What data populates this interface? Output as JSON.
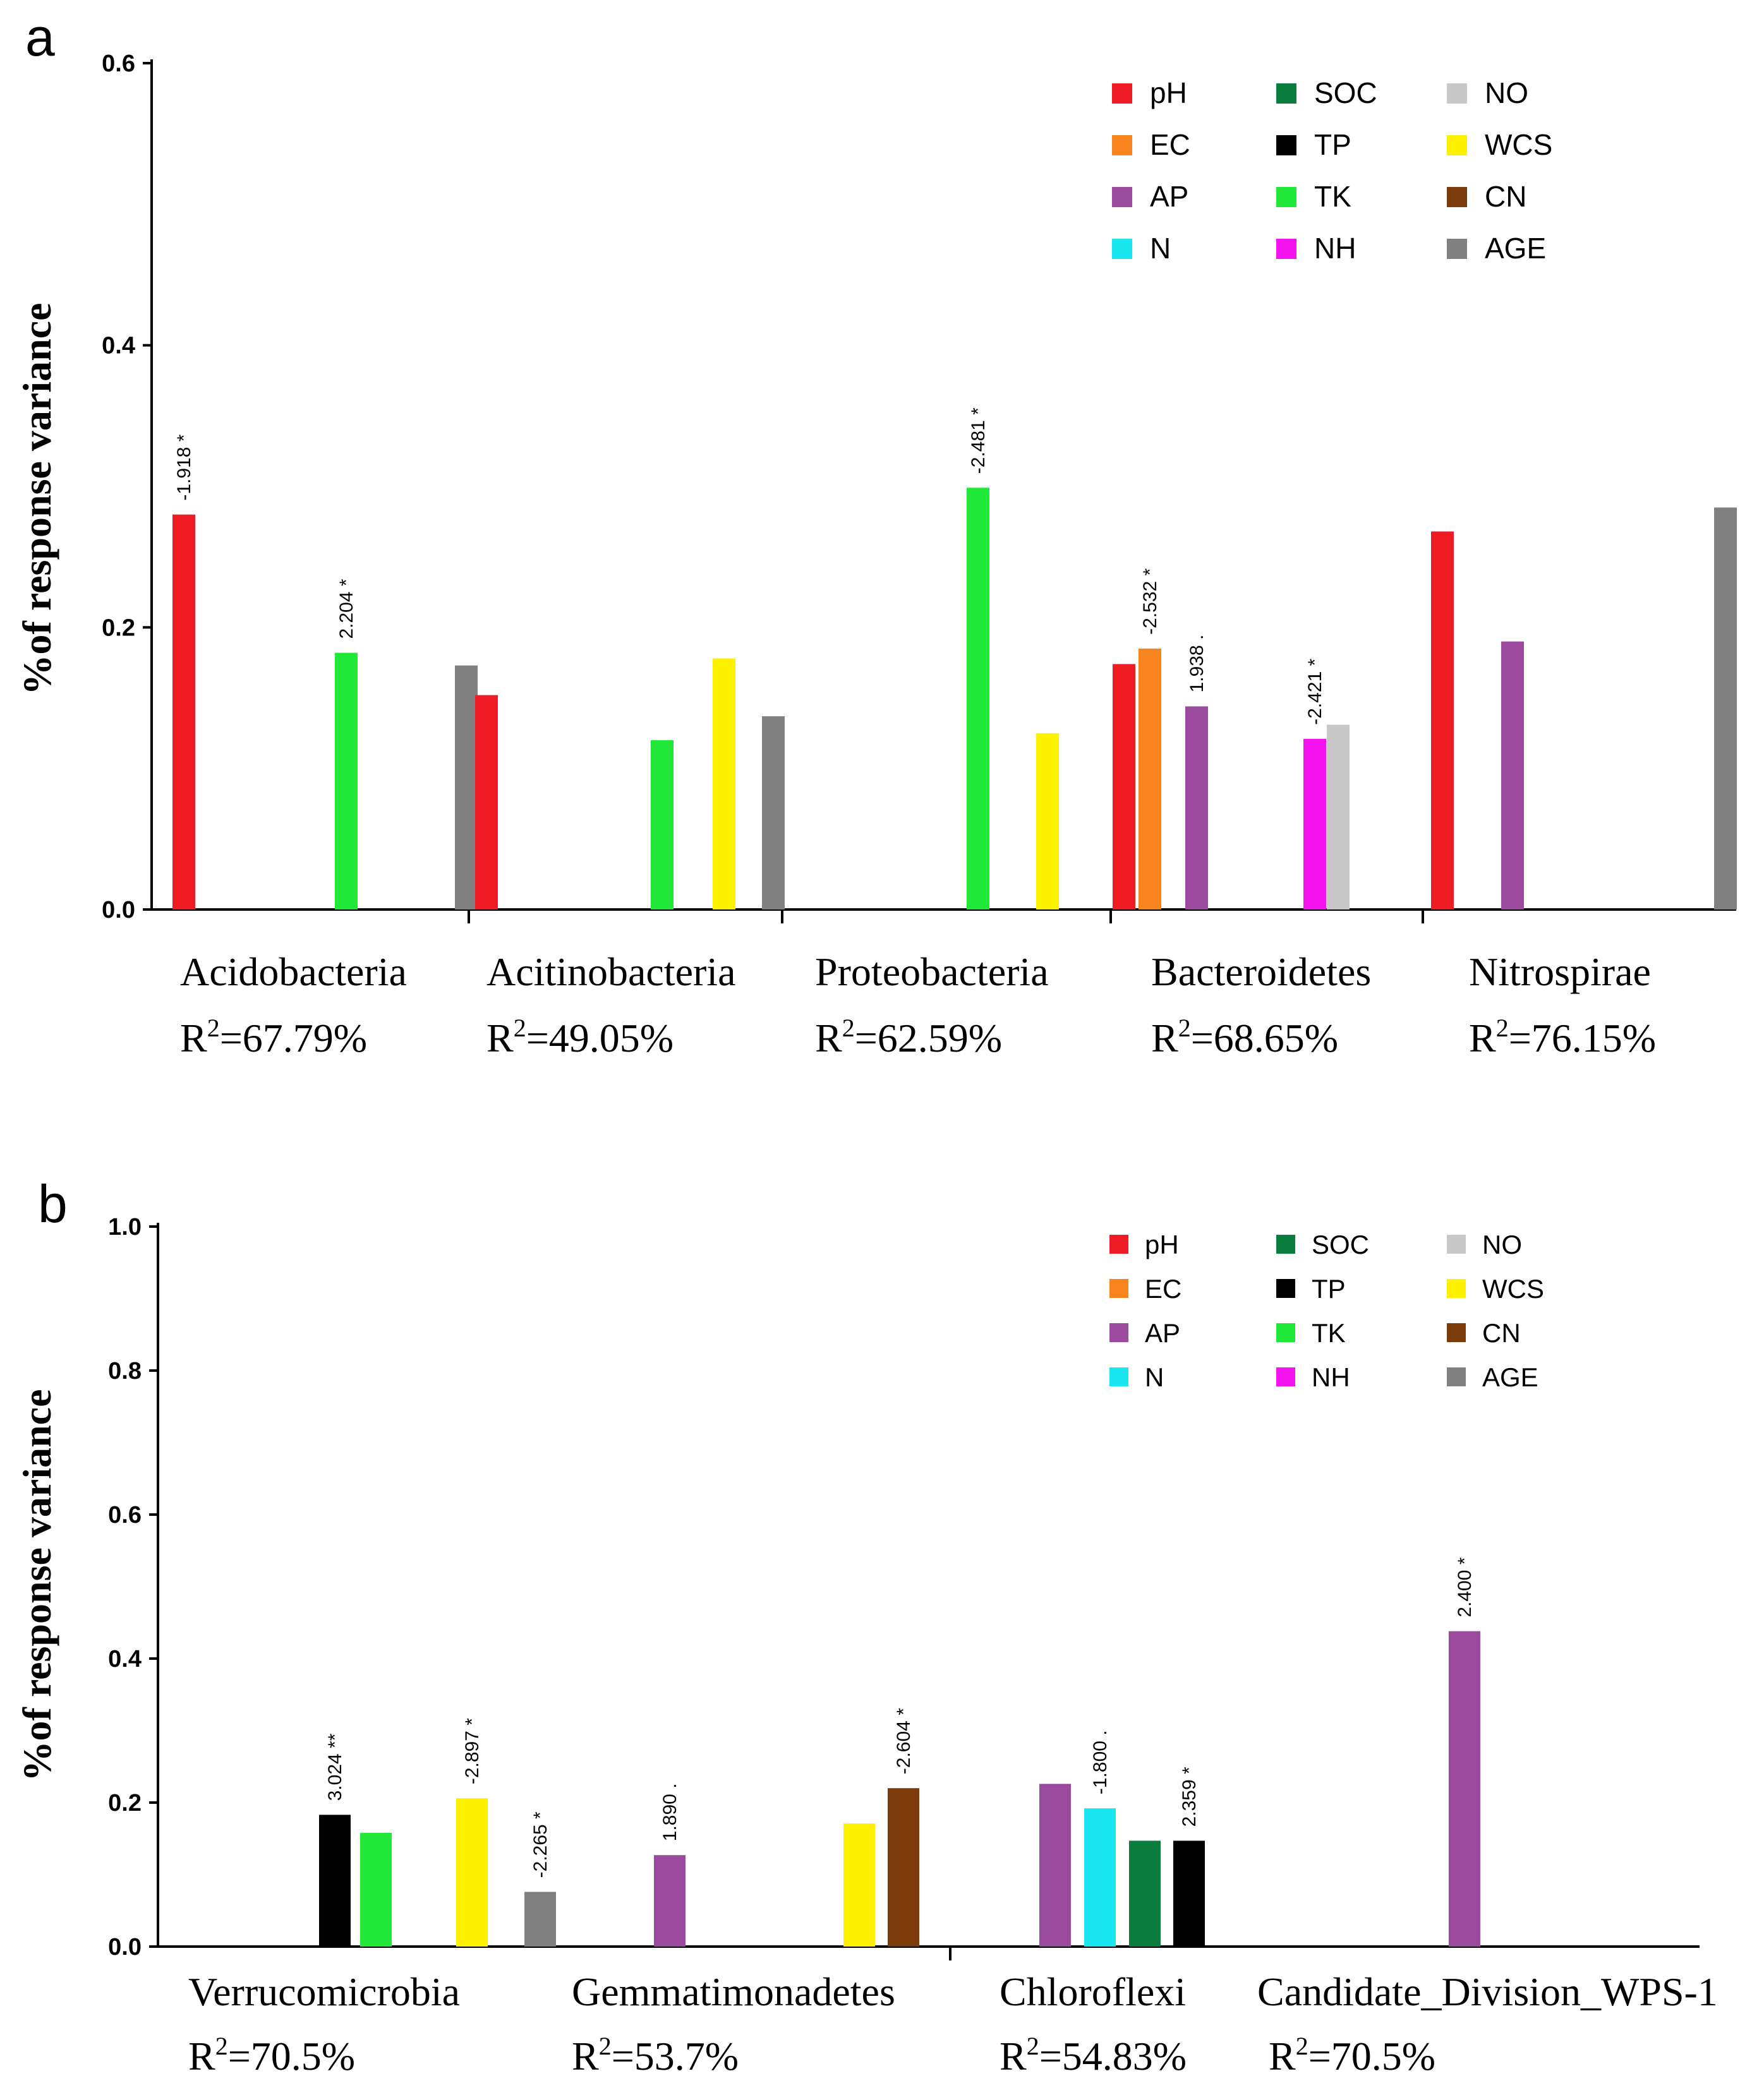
{
  "colors": {
    "pH": "#ee1c25",
    "EC": "#f7841f",
    "AP": "#9b4a9e",
    "N": "#19e6ee",
    "SOC": "#0a7d3e",
    "TP": "#000000",
    "TK": "#22e83a",
    "NH": "#f413ef",
    "NO": "#c8c8c8",
    "WCS": "#fff200",
    "CN": "#7b3a0a",
    "AGE": "#808080"
  },
  "chart_data": [
    {
      "type": "bar",
      "panel_label": "a",
      "ylabel": "%of response variance",
      "ylim": [
        0,
        0.6
      ],
      "yticks": [
        "0.0",
        "0.2",
        "0.4",
        "0.6"
      ],
      "grid": false,
      "legend_position": "top-right",
      "legend": [
        "pH",
        "EC",
        "AP",
        "N",
        "SOC",
        "TP",
        "TK",
        "NH",
        "NO",
        "WCS",
        "CN",
        "AGE"
      ],
      "groups": [
        {
          "name": "Acidobacteria",
          "r2_base": "R",
          "r2_sup": "2",
          "r2_value": "=67.79%",
          "bars": [
            {
              "var": "pH",
              "value": 0.28,
              "label": "-1.918 *"
            },
            {
              "var": "TK",
              "value": 0.182,
              "label": "2.204 *"
            },
            {
              "var": "AGE",
              "value": 0.173,
              "label": ""
            }
          ]
        },
        {
          "name": "Acitinobacteria",
          "r2_base": "R",
          "r2_sup": "2",
          "r2_value": "=49.05%",
          "bars": [
            {
              "var": "pH",
              "value": 0.152,
              "label": ""
            },
            {
              "var": "TK",
              "value": 0.12,
              "label": ""
            },
            {
              "var": "WCS",
              "value": 0.178,
              "label": ""
            },
            {
              "var": "AGE",
              "value": 0.137,
              "label": ""
            }
          ]
        },
        {
          "name": "Proteobacteria",
          "r2_base": "R",
          "r2_sup": "2",
          "r2_value": "=62.59%",
          "bars": [
            {
              "var": "TK",
              "value": 0.299,
              "label": "-2.481 *"
            },
            {
              "var": "WCS",
              "value": 0.125,
              "label": ""
            }
          ]
        },
        {
          "name": "Bacteroidetes",
          "r2_base": "R",
          "r2_sup": "2",
          "r2_value": "=68.65%",
          "bars": [
            {
              "var": "pH",
              "value": 0.174,
              "label": ""
            },
            {
              "var": "EC",
              "value": 0.185,
              "label": "-2.532 *"
            },
            {
              "var": "AP",
              "value": 0.144,
              "label": "1.938 ."
            },
            {
              "var": "NH",
              "value": 0.121,
              "label": "-2.421 *"
            },
            {
              "var": "NO",
              "value": 0.131,
              "label": ""
            }
          ]
        },
        {
          "name": "Nitrospirae",
          "r2_base": "R",
          "r2_sup": "2",
          "r2_value": "=76.15%",
          "bars": [
            {
              "var": "pH",
              "value": 0.268,
              "label": ""
            },
            {
              "var": "AP",
              "value": 0.19,
              "label": ""
            },
            {
              "var": "AGE",
              "value": 0.285,
              "label": ""
            }
          ]
        }
      ]
    },
    {
      "type": "bar",
      "panel_label": "b",
      "ylabel": "%of response variance",
      "ylim": [
        0,
        1.0
      ],
      "yticks": [
        "0.0",
        "0.2",
        "0.4",
        "0.6",
        "0.8",
        "1.0"
      ],
      "grid": false,
      "legend_position": "top-right",
      "legend": [
        "pH",
        "EC",
        "AP",
        "N",
        "SOC",
        "TP",
        "TK",
        "NH",
        "NO",
        "WCS",
        "CN",
        "AGE"
      ],
      "groups": [
        {
          "name": "Verrucomicrobia",
          "r2_base": "R",
          "r2_sup": "2",
          "r2_value": "=70.5%",
          "bars": [
            {
              "var": "TP",
              "value": 0.183,
              "label": "3.024 **"
            },
            {
              "var": "TK",
              "value": 0.158,
              "label": ""
            },
            {
              "var": "WCS",
              "value": 0.206,
              "label": "-2.897 *"
            },
            {
              "var": "AGE",
              "value": 0.076,
              "label": "-2.265 *"
            }
          ]
        },
        {
          "name": "Gemmatimonadetes",
          "r2_base": "R",
          "r2_sup": "2",
          "r2_value": "=53.7%",
          "bars": [
            {
              "var": "AP",
              "value": 0.127,
              "label": "1.890 ."
            },
            {
              "var": "WCS",
              "value": 0.171,
              "label": ""
            },
            {
              "var": "CN",
              "value": 0.22,
              "label": "-2.604 *"
            }
          ]
        },
        {
          "name": "Chloroflexi",
          "r2_base": "R",
          "r2_sup": "2",
          "r2_value": "=54.83%",
          "bars": [
            {
              "var": "AP",
              "value": 0.226,
              "label": ""
            },
            {
              "var": "N",
              "value": 0.192,
              "label": "-1.800 ."
            },
            {
              "var": "SOC",
              "value": 0.147,
              "label": ""
            },
            {
              "var": "TP",
              "value": 0.147,
              "label": "2.359 *"
            }
          ]
        },
        {
          "name": "Candidate_Division_WPS-1",
          "r2_base": "R",
          "r2_sup": "2",
          "r2_value": "=70.5%",
          "bars": [
            {
              "var": "AP",
              "value": 0.438,
              "label": "2.400 *"
            }
          ]
        }
      ]
    }
  ]
}
